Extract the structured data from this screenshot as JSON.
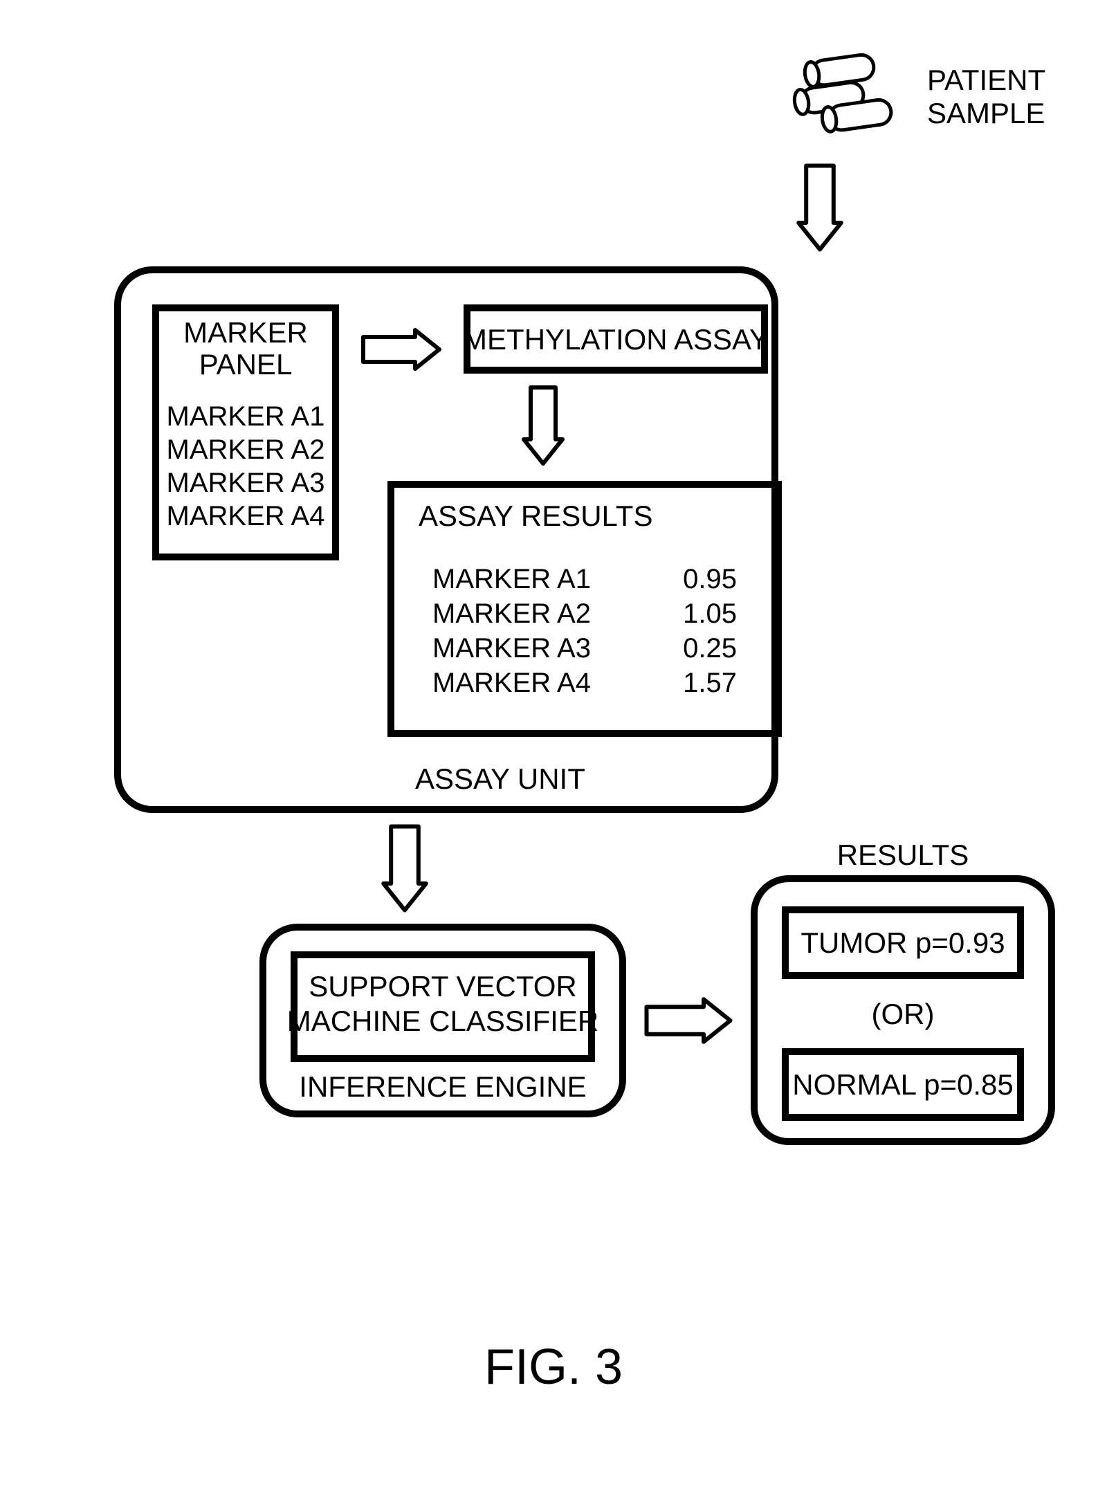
{
  "figure_label": "FIG. 3",
  "patient_sample_label": "PATIENT\nSAMPLE",
  "assay_unit_label": "ASSAY UNIT",
  "marker_panel": {
    "title": "MARKER\nPANEL",
    "items": [
      "MARKER A1",
      "MARKER A2",
      "MARKER A3",
      "MARKER A4"
    ]
  },
  "methylation_assay_label": "METHYLATION ASSAY",
  "assay_results": {
    "title": "ASSAY RESULTS",
    "rows": [
      {
        "name": "MARKER A1",
        "value": "0.95"
      },
      {
        "name": "MARKER A2",
        "value": "1.05"
      },
      {
        "name": "MARKER A3",
        "value": "0.25"
      },
      {
        "name": "MARKER A4",
        "value": "1.57"
      }
    ]
  },
  "inference_engine": {
    "title": "INFERENCE ENGINE",
    "box_label": "SUPPORT VECTOR\nMACHINE CLASSIFIER"
  },
  "results": {
    "title": "RESULTS",
    "tumor": "TUMOR p=0.93",
    "or": "(OR)",
    "normal": "NORMAL p=0.85"
  },
  "style": {
    "stroke": "#000000",
    "stroke_thin": 6,
    "stroke_thick": 10,
    "corner_radius": 50,
    "font_size_label": 42,
    "font_size_small": 40,
    "font_size_fig": 72
  }
}
